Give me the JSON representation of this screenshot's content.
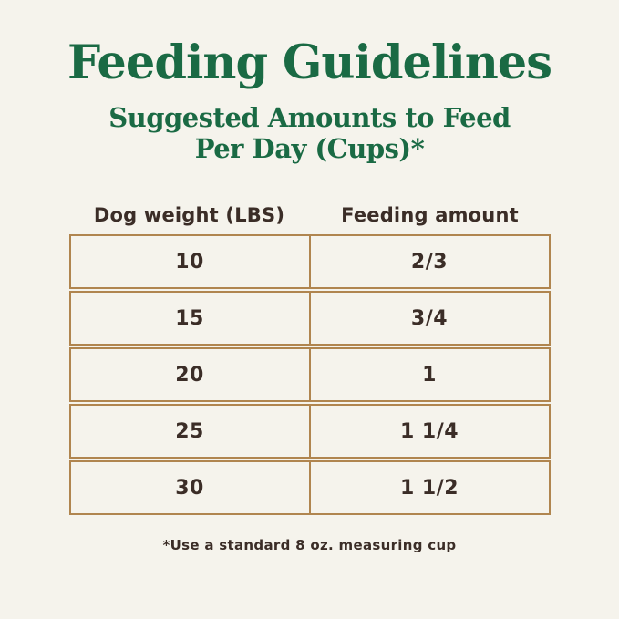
{
  "page": {
    "title": "Feeding Guidelines",
    "subtitle_line1": "Suggested Amounts to Feed",
    "subtitle_line2": "Per Day (Cups)*",
    "footnote": "*Use a standard 8 oz. measuring cup"
  },
  "colors": {
    "background": "#f5f3ec",
    "heading_green": "#1a6a44",
    "table_border_tan": "#b0854f",
    "text_dark_brown": "#3b2d27"
  },
  "table": {
    "columns": [
      "Dog weight (LBS)",
      "Feeding amount"
    ],
    "rows": [
      {
        "weight": "10",
        "amount": "2/3"
      },
      {
        "weight": "15",
        "amount": "3/4"
      },
      {
        "weight": "20",
        "amount": "1"
      },
      {
        "weight": "25",
        "amount": "1 1/4"
      },
      {
        "weight": "30",
        "amount": "1 1/2"
      }
    ]
  },
  "chart_data": {
    "type": "table",
    "title": "Feeding Guidelines",
    "subtitle": "Suggested Amounts to Feed Per Day (Cups)*",
    "columns": [
      "Dog weight (LBS)",
      "Feeding amount"
    ],
    "rows": [
      [
        "10",
        "2/3"
      ],
      [
        "15",
        "3/4"
      ],
      [
        "20",
        "1"
      ],
      [
        "25",
        "1 1/4"
      ],
      [
        "30",
        "1 1/2"
      ]
    ],
    "footnote": "*Use a standard 8 oz. measuring cup"
  }
}
